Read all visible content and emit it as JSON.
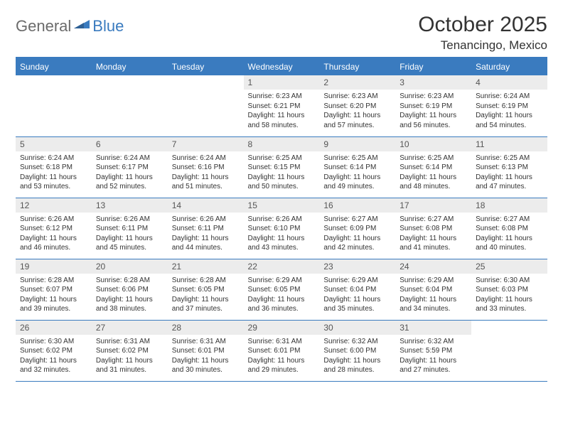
{
  "logo": {
    "part1": "General",
    "part2": "Blue"
  },
  "title": "October 2025",
  "location": "Tenancingo, Mexico",
  "colors": {
    "brand": "#3a7bbf",
    "header_bg": "#3a7bbf",
    "header_text": "#ffffff",
    "daynum_bg": "#ececec",
    "text": "#333333",
    "logo_gray": "#6b6b6b"
  },
  "weekdays": [
    "Sunday",
    "Monday",
    "Tuesday",
    "Wednesday",
    "Thursday",
    "Friday",
    "Saturday"
  ],
  "weeks": [
    [
      {
        "n": "",
        "sunrise": "",
        "sunset": "",
        "daylight": ""
      },
      {
        "n": "",
        "sunrise": "",
        "sunset": "",
        "daylight": ""
      },
      {
        "n": "",
        "sunrise": "",
        "sunset": "",
        "daylight": ""
      },
      {
        "n": "1",
        "sunrise": "Sunrise: 6:23 AM",
        "sunset": "Sunset: 6:21 PM",
        "daylight": "Daylight: 11 hours and 58 minutes."
      },
      {
        "n": "2",
        "sunrise": "Sunrise: 6:23 AM",
        "sunset": "Sunset: 6:20 PM",
        "daylight": "Daylight: 11 hours and 57 minutes."
      },
      {
        "n": "3",
        "sunrise": "Sunrise: 6:23 AM",
        "sunset": "Sunset: 6:19 PM",
        "daylight": "Daylight: 11 hours and 56 minutes."
      },
      {
        "n": "4",
        "sunrise": "Sunrise: 6:24 AM",
        "sunset": "Sunset: 6:19 PM",
        "daylight": "Daylight: 11 hours and 54 minutes."
      }
    ],
    [
      {
        "n": "5",
        "sunrise": "Sunrise: 6:24 AM",
        "sunset": "Sunset: 6:18 PM",
        "daylight": "Daylight: 11 hours and 53 minutes."
      },
      {
        "n": "6",
        "sunrise": "Sunrise: 6:24 AM",
        "sunset": "Sunset: 6:17 PM",
        "daylight": "Daylight: 11 hours and 52 minutes."
      },
      {
        "n": "7",
        "sunrise": "Sunrise: 6:24 AM",
        "sunset": "Sunset: 6:16 PM",
        "daylight": "Daylight: 11 hours and 51 minutes."
      },
      {
        "n": "8",
        "sunrise": "Sunrise: 6:25 AM",
        "sunset": "Sunset: 6:15 PM",
        "daylight": "Daylight: 11 hours and 50 minutes."
      },
      {
        "n": "9",
        "sunrise": "Sunrise: 6:25 AM",
        "sunset": "Sunset: 6:14 PM",
        "daylight": "Daylight: 11 hours and 49 minutes."
      },
      {
        "n": "10",
        "sunrise": "Sunrise: 6:25 AM",
        "sunset": "Sunset: 6:14 PM",
        "daylight": "Daylight: 11 hours and 48 minutes."
      },
      {
        "n": "11",
        "sunrise": "Sunrise: 6:25 AM",
        "sunset": "Sunset: 6:13 PM",
        "daylight": "Daylight: 11 hours and 47 minutes."
      }
    ],
    [
      {
        "n": "12",
        "sunrise": "Sunrise: 6:26 AM",
        "sunset": "Sunset: 6:12 PM",
        "daylight": "Daylight: 11 hours and 46 minutes."
      },
      {
        "n": "13",
        "sunrise": "Sunrise: 6:26 AM",
        "sunset": "Sunset: 6:11 PM",
        "daylight": "Daylight: 11 hours and 45 minutes."
      },
      {
        "n": "14",
        "sunrise": "Sunrise: 6:26 AM",
        "sunset": "Sunset: 6:11 PM",
        "daylight": "Daylight: 11 hours and 44 minutes."
      },
      {
        "n": "15",
        "sunrise": "Sunrise: 6:26 AM",
        "sunset": "Sunset: 6:10 PM",
        "daylight": "Daylight: 11 hours and 43 minutes."
      },
      {
        "n": "16",
        "sunrise": "Sunrise: 6:27 AM",
        "sunset": "Sunset: 6:09 PM",
        "daylight": "Daylight: 11 hours and 42 minutes."
      },
      {
        "n": "17",
        "sunrise": "Sunrise: 6:27 AM",
        "sunset": "Sunset: 6:08 PM",
        "daylight": "Daylight: 11 hours and 41 minutes."
      },
      {
        "n": "18",
        "sunrise": "Sunrise: 6:27 AM",
        "sunset": "Sunset: 6:08 PM",
        "daylight": "Daylight: 11 hours and 40 minutes."
      }
    ],
    [
      {
        "n": "19",
        "sunrise": "Sunrise: 6:28 AM",
        "sunset": "Sunset: 6:07 PM",
        "daylight": "Daylight: 11 hours and 39 minutes."
      },
      {
        "n": "20",
        "sunrise": "Sunrise: 6:28 AM",
        "sunset": "Sunset: 6:06 PM",
        "daylight": "Daylight: 11 hours and 38 minutes."
      },
      {
        "n": "21",
        "sunrise": "Sunrise: 6:28 AM",
        "sunset": "Sunset: 6:05 PM",
        "daylight": "Daylight: 11 hours and 37 minutes."
      },
      {
        "n": "22",
        "sunrise": "Sunrise: 6:29 AM",
        "sunset": "Sunset: 6:05 PM",
        "daylight": "Daylight: 11 hours and 36 minutes."
      },
      {
        "n": "23",
        "sunrise": "Sunrise: 6:29 AM",
        "sunset": "Sunset: 6:04 PM",
        "daylight": "Daylight: 11 hours and 35 minutes."
      },
      {
        "n": "24",
        "sunrise": "Sunrise: 6:29 AM",
        "sunset": "Sunset: 6:04 PM",
        "daylight": "Daylight: 11 hours and 34 minutes."
      },
      {
        "n": "25",
        "sunrise": "Sunrise: 6:30 AM",
        "sunset": "Sunset: 6:03 PM",
        "daylight": "Daylight: 11 hours and 33 minutes."
      }
    ],
    [
      {
        "n": "26",
        "sunrise": "Sunrise: 6:30 AM",
        "sunset": "Sunset: 6:02 PM",
        "daylight": "Daylight: 11 hours and 32 minutes."
      },
      {
        "n": "27",
        "sunrise": "Sunrise: 6:31 AM",
        "sunset": "Sunset: 6:02 PM",
        "daylight": "Daylight: 11 hours and 31 minutes."
      },
      {
        "n": "28",
        "sunrise": "Sunrise: 6:31 AM",
        "sunset": "Sunset: 6:01 PM",
        "daylight": "Daylight: 11 hours and 30 minutes."
      },
      {
        "n": "29",
        "sunrise": "Sunrise: 6:31 AM",
        "sunset": "Sunset: 6:01 PM",
        "daylight": "Daylight: 11 hours and 29 minutes."
      },
      {
        "n": "30",
        "sunrise": "Sunrise: 6:32 AM",
        "sunset": "Sunset: 6:00 PM",
        "daylight": "Daylight: 11 hours and 28 minutes."
      },
      {
        "n": "31",
        "sunrise": "Sunrise: 6:32 AM",
        "sunset": "Sunset: 5:59 PM",
        "daylight": "Daylight: 11 hours and 27 minutes."
      },
      {
        "n": "",
        "sunrise": "",
        "sunset": "",
        "daylight": ""
      }
    ]
  ]
}
